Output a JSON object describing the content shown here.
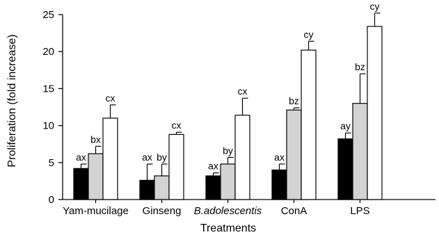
{
  "chart_data": {
    "type": "bar",
    "title": "",
    "xlabel": "Treatments",
    "ylabel": "Proliferation (fold increase)",
    "ylim": [
      0,
      25
    ],
    "yticks": [
      0,
      5,
      10,
      15,
      20,
      25
    ],
    "grid": false,
    "legend": "none",
    "categories": [
      "Yam-mucilage",
      "Ginseng",
      "B.adolescentis",
      "ConA",
      "LPS"
    ],
    "category_italic": [
      false,
      false,
      true,
      false,
      false
    ],
    "series": [
      {
        "color": "#000000",
        "values": [
          4.2,
          2.6,
          3.2,
          4.0,
          8.2
        ],
        "errors": [
          0.6,
          2.2,
          0.4,
          0.8,
          0.8
        ],
        "labels": [
          "ax",
          "ax",
          "ax",
          "ax",
          "ay"
        ]
      },
      {
        "color": "#d3d3d3",
        "values": [
          6.2,
          3.2,
          4.8,
          12.1,
          13.0
        ],
        "errors": [
          1.0,
          1.6,
          0.9,
          0.3,
          4.0
        ],
        "labels": [
          "bx",
          "by",
          "by",
          "bz",
          "bz"
        ]
      },
      {
        "color": "#ffffff",
        "values": [
          11.0,
          8.8,
          11.4,
          20.2,
          23.4
        ],
        "errors": [
          1.8,
          0.3,
          2.3,
          1.2,
          1.8
        ],
        "labels": [
          "cx",
          "cx",
          "cx",
          "cy",
          "cy"
        ]
      }
    ]
  }
}
